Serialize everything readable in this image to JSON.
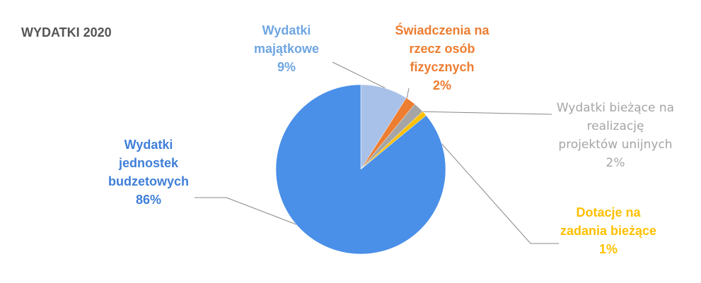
{
  "chart_data": {
    "type": "pie",
    "title": "WYDATKI 2020",
    "categories": [
      "Wydatki majątkowe",
      "Świadczenia na rzecz osób fizycznych",
      "Wydatki bieżące na realizację projektów unijnych",
      "Dotacje na zadania bieżące",
      "Wydatki jednostek budzetowych"
    ],
    "values": [
      9,
      2,
      2,
      1,
      86
    ],
    "value_labels": [
      "9%",
      "2%",
      "2%",
      "1%",
      "86%"
    ],
    "colors": [
      "#a8c1e8",
      "#ed7d31",
      "#a5a5a5",
      "#ffc000",
      "#4a8fe8"
    ],
    "label_colors": [
      "#6fa6e2",
      "#ed7d31",
      "#a5a5a5",
      "#ffc000",
      "#3f7fd9"
    ]
  }
}
